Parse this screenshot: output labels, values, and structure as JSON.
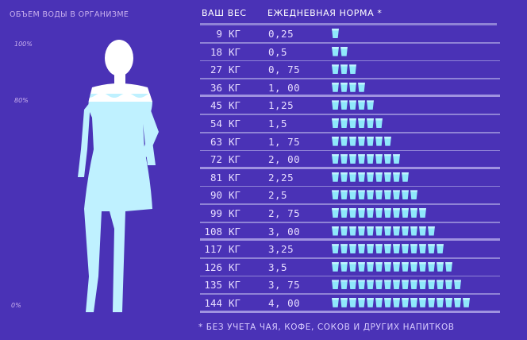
{
  "left": {
    "title": "ОБЪЕМ ВОДЫ В ОРГАНИЗМЕ",
    "scale": [
      "100%",
      "80%",
      "0%"
    ]
  },
  "header": {
    "weight_label": "ВАШ ВЕС",
    "norm_label": "ЕЖЕДНЕВНАЯ НОРМА *"
  },
  "rows": [
    {
      "weight": "9",
      "unit": "КГ",
      "liters": "0,25",
      "glasses": 1
    },
    {
      "weight": "18",
      "unit": "КГ",
      "liters": "0,5",
      "glasses": 2
    },
    {
      "weight": "27",
      "unit": "КГ",
      "liters": "0, 75",
      "glasses": 3
    },
    {
      "weight": "36",
      "unit": "КГ",
      "liters": "1, 00",
      "glasses": 4
    },
    {
      "weight": "45",
      "unit": "КГ",
      "liters": "1,25",
      "glasses": 5
    },
    {
      "weight": "54",
      "unit": "КГ",
      "liters": "1,5",
      "glasses": 6
    },
    {
      "weight": "63",
      "unit": "КГ",
      "liters": "1, 75",
      "glasses": 7
    },
    {
      "weight": "72",
      "unit": "КГ",
      "liters": "2, 00",
      "glasses": 8
    },
    {
      "weight": "81",
      "unit": "КГ",
      "liters": "2,25",
      "glasses": 9
    },
    {
      "weight": "90",
      "unit": "КГ",
      "liters": "2,5",
      "glasses": 10
    },
    {
      "weight": "99",
      "unit": "КГ",
      "liters": "2, 75",
      "glasses": 11
    },
    {
      "weight": "108",
      "unit": "КГ",
      "liters": "3, 00",
      "glasses": 12
    },
    {
      "weight": "117",
      "unit": "КГ",
      "liters": "3,25",
      "glasses": 13
    },
    {
      "weight": "126",
      "unit": "КГ",
      "liters": "3,5",
      "glasses": 14
    },
    {
      "weight": "135",
      "unit": "КГ",
      "liters": "3, 75",
      "glasses": 15
    },
    {
      "weight": "144",
      "unit": "КГ",
      "liters": "4, 00",
      "glasses": 16
    }
  ],
  "footnote": "* БЕЗ УЧЕТА ЧАЯ, КОФЕ, СОКОВ И ДРУГИХ НАПИТКОВ",
  "colors": {
    "background": "#4a32b6",
    "silhouette_top": "#ffffff",
    "silhouette_water": "#bff1ff",
    "glass": "#8fe8fb"
  }
}
